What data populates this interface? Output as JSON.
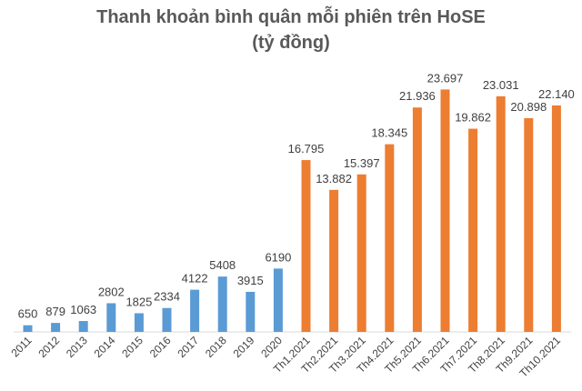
{
  "chart_data": {
    "type": "bar",
    "title": "Thanh khoản bình quân mỗi phiên trên HoSE",
    "subtitle": "(tỷ đồng)",
    "xlabel": "",
    "ylabel": "",
    "categories": [
      "2011",
      "2012",
      "2013",
      "2014",
      "2015",
      "2016",
      "2017",
      "2018",
      "2019",
      "2020",
      "Th1.2021",
      "Th2.2021",
      "Th3.2021",
      "Th4.2021",
      "Th5.2021",
      "Th6.2021",
      "Th7.2021",
      "Th8.2021",
      "Th9.2021",
      "Th10.2021"
    ],
    "values": [
      650,
      879,
      1063,
      2802,
      1825,
      2334,
      4122,
      5408,
      3915,
      6190,
      16795,
      13882,
      15397,
      18345,
      21936,
      23697,
      19862,
      23031,
      20898,
      22140
    ],
    "data_labels": [
      "650",
      "879",
      "1063",
      "2802",
      "1825",
      "2334",
      "4122",
      "5408",
      "3915",
      "6190",
      "16.795",
      "13.882",
      "15.397",
      "18.345",
      "21.936",
      "23.697",
      "19.862",
      "23.031",
      "20.898",
      "22.140"
    ],
    "ylim": [
      0,
      24000
    ],
    "grid": false,
    "legend": "none",
    "colors": {
      "years": "#5b9bd5",
      "months": "#ed7d31",
      "axis": "#d9d9d9"
    }
  }
}
